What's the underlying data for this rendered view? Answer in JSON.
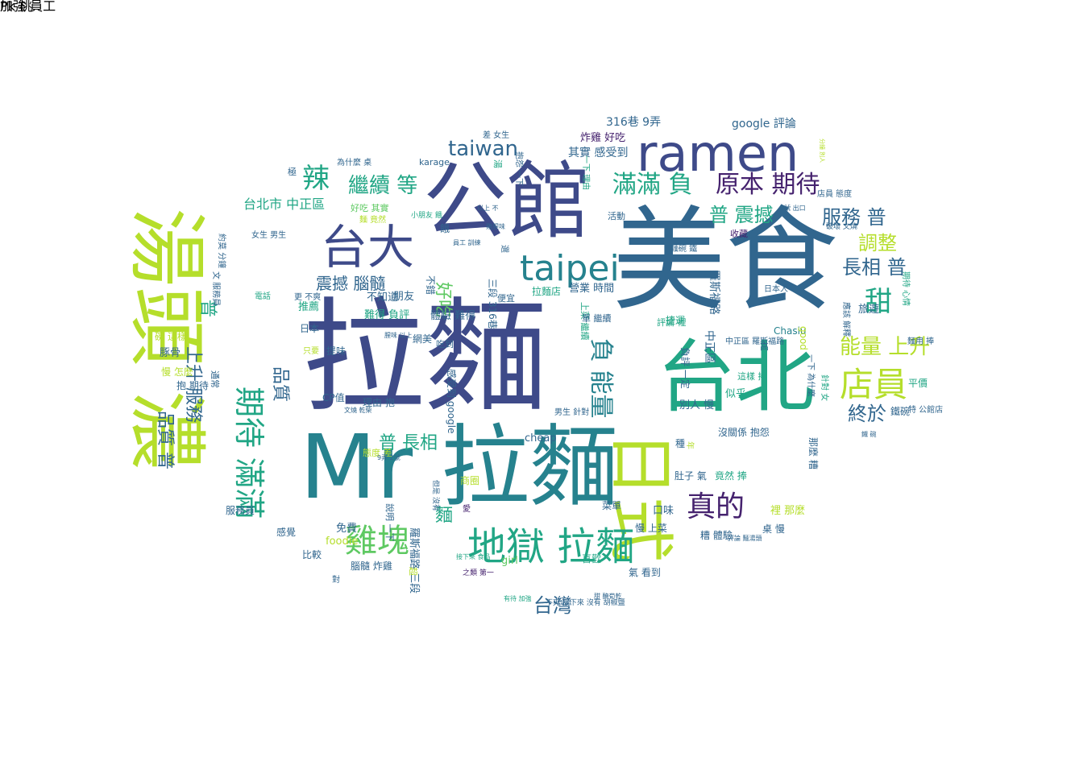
{
  "palette": {
    "dark_purple": "#45226e",
    "indigo": "#3e4a89",
    "slate_blue": "#31668e",
    "teal": "#26828e",
    "green_teal": "#21a685",
    "green": "#5ec962",
    "lime": "#b5de2b"
  },
  "words": [
    {
      "text": "拉麵",
      "color": "#3e4a89"
    },
    {
      "text": "美食",
      "color": "#31668e"
    },
    {
      "text": "公館",
      "color": "#3e4a89"
    },
    {
      "text": "Mr 拉麵",
      "color": "#26828e"
    },
    {
      "text": "湯頭 濃",
      "color": "#b5de2b"
    },
    {
      "text": "台北",
      "color": "#21a685"
    },
    {
      "text": "ramen",
      "color": "#3e4a89"
    },
    {
      "text": "日式",
      "color": "#b5de2b"
    },
    {
      "text": "台大",
      "color": "#3e4a89"
    },
    {
      "text": "地獄 拉麵",
      "color": "#21a685"
    },
    {
      "text": "雞塊",
      "color": "#5ec962"
    },
    {
      "text": "taipei",
      "color": "#26828e"
    },
    {
      "text": "店員",
      "color": "#b5de2b"
    },
    {
      "text": "期待 滿滿",
      "color": "#21a685"
    },
    {
      "text": "真的",
      "color": "#45226e"
    },
    {
      "text": "辣",
      "color": "#21a685"
    },
    {
      "text": "甜",
      "color": "#21a685"
    },
    {
      "text": "負 能量",
      "color": "#26828e"
    },
    {
      "text": "滿滿 負",
      "color": "#21a685"
    },
    {
      "text": "原本 期待",
      "color": "#45226e"
    },
    {
      "text": "繼續 等",
      "color": "#21a685"
    },
    {
      "text": "taiwan",
      "color": "#31668e"
    },
    {
      "text": "服務 普",
      "color": "#31668e"
    },
    {
      "text": "能量 上升",
      "color": "#b5de2b"
    },
    {
      "text": "普 震撼",
      "color": "#21a685"
    },
    {
      "text": "長相 普",
      "color": "#31668e"
    },
    {
      "text": "調整",
      "color": "#b5de2b"
    },
    {
      "text": "終於",
      "color": "#31668e"
    },
    {
      "text": "普 長相",
      "color": "#21a685"
    },
    {
      "text": "台灣",
      "color": "#31668e"
    },
    {
      "text": "品質 普",
      "color": "#31668e"
    },
    {
      "text": "品質",
      "color": "#31668e"
    },
    {
      "text": "普",
      "color": "#21a685"
    },
    {
      "text": "上升 服務",
      "color": "#31668e"
    },
    {
      "text": "震撼 腦髓",
      "color": "#31668e"
    },
    {
      "text": "好吃",
      "color": "#5ec962"
    },
    {
      "text": "麵",
      "color": "#21a685"
    },
    {
      "text": "台北市 中正區",
      "color": "#21a685"
    },
    {
      "text": "316巷 9弄",
      "color": "#31668e"
    },
    {
      "text": "google 評論",
      "color": "#31668e"
    },
    {
      "text": "炸雞 好吃",
      "color": "#45226e"
    },
    {
      "text": "其實 感受到",
      "color": "#31668e"
    },
    {
      "text": "營業 時間",
      "color": "#31668e"
    },
    {
      "text": "羅斯福路",
      "color": "#31668e"
    },
    {
      "text": "中正區",
      "color": "#31668e"
    },
    {
      "text": "網美",
      "color": "#31668e"
    },
    {
      "text": "豚骨",
      "color": "#31668e"
    },
    {
      "text": "推薦",
      "color": "#21a685"
    },
    {
      "text": "朋友",
      "color": "#31668e"
    },
    {
      "text": "不知道",
      "color": "#31668e"
    },
    {
      "text": "難得 負評",
      "color": "#21a685"
    },
    {
      "text": "體驗 難得",
      "color": "#31668e"
    },
    {
      "text": "拉麵店",
      "color": "#21a685"
    },
    {
      "text": "旅遊",
      "color": "#31668e"
    },
    {
      "text": "Chasiu",
      "color": "#26828e"
    },
    {
      "text": "good",
      "color": "#b5de2b"
    },
    {
      "text": "平價",
      "color": "#21a685"
    },
    {
      "text": "鐵碗",
      "color": "#31668e"
    },
    {
      "text": "似乎",
      "color": "#21a685"
    },
    {
      "text": "別人 慢",
      "color": "#31668e"
    },
    {
      "text": "cheap",
      "color": "#31668e"
    },
    {
      "text": "沒關係 抱怨",
      "color": "#31668e"
    },
    {
      "text": "那麼 糟",
      "color": "#31668e"
    },
    {
      "text": "種",
      "color": "#31668e"
    },
    {
      "text": "肚子 氣",
      "color": "#31668e"
    },
    {
      "text": "竟然 捧",
      "color": "#21a685"
    },
    {
      "text": "裡 那麼",
      "color": "#b5de2b"
    },
    {
      "text": "糟 體驗",
      "color": "#31668e"
    },
    {
      "text": "桌 慢",
      "color": "#31668e"
    },
    {
      "text": "慢 上菜",
      "color": "#31668e"
    },
    {
      "text": "口味",
      "color": "#31668e"
    },
    {
      "text": "菜單",
      "color": "#31668e"
    },
    {
      "text": "girl",
      "color": "#5ec962"
    },
    {
      "text": "喜歡",
      "color": "#21a685"
    },
    {
      "text": "氣 看到",
      "color": "#31668e"
    },
    {
      "text": "免費",
      "color": "#31668e"
    },
    {
      "text": "foodie",
      "color": "#b5de2b"
    },
    {
      "text": "比較",
      "color": "#31668e"
    },
    {
      "text": "腦髓 炸雞",
      "color": "#31668e"
    },
    {
      "text": "羅斯福路 三段",
      "color": "#31668e"
    },
    {
      "text": "商圈",
      "color": "#b5de2b"
    },
    {
      "text": "感覺",
      "color": "#31668e"
    },
    {
      "text": "服務員",
      "color": "#31668e"
    },
    {
      "text": "理由 抱",
      "color": "#31668e"
    },
    {
      "text": "CP值",
      "color": "#31668e"
    },
    {
      "text": "提味",
      "color": "#31668e"
    },
    {
      "text": "日本",
      "color": "#31668e"
    },
    {
      "text": "抱 期待",
      "color": "#31668e"
    },
    {
      "text": "慢 怎麼",
      "color": "#b5de2b"
    },
    {
      "text": "碗 這樣",
      "color": "#b5de2b"
    },
    {
      "text": "只要",
      "color": "#b5de2b"
    },
    {
      "text": "吃到",
      "color": "#31668e"
    },
    {
      "text": "便宜",
      "color": "#31668e"
    },
    {
      "text": "好吃 其實",
      "color": "#5ec962"
    },
    {
      "text": "湯",
      "color": "#21a685"
    },
    {
      "text": "karage",
      "color": "#31668e"
    },
    {
      "text": "為什麼 桌",
      "color": "#31668e"
    },
    {
      "text": "差 女生",
      "color": "#31668e"
    },
    {
      "text": "女生 男生",
      "color": "#31668e"
    },
    {
      "text": "收藏",
      "color": "#45226e"
    },
    {
      "text": "活動",
      "color": "#31668e"
    },
    {
      "text": "捷運",
      "color": "#21a685"
    },
    {
      "text": "評論 裡",
      "color": "#21a685"
    },
    {
      "text": "店員 態度",
      "color": "#31668e"
    },
    {
      "text": "破壞 文燒",
      "color": "#31668e"
    },
    {
      "text": "麵用 捧",
      "color": "#31668e"
    },
    {
      "text": "這樣 捧",
      "color": "#21a685"
    },
    {
      "text": "男生 針對",
      "color": "#31668e"
    },
    {
      "text": "態度 差",
      "color": "#b5de2b"
    },
    {
      "text": "麵 竟然",
      "color": "#b5de2b"
    },
    {
      "text": "餓",
      "color": "#31668e"
    },
    {
      "text": "極",
      "color": "#31668e"
    },
    {
      "text": "通常",
      "color": "#31668e"
    },
    {
      "text": "超",
      "color": "#b5de2b"
    },
    {
      "text": "對",
      "color": "#31668e"
    },
    {
      "text": "高",
      "color": "#31668e"
    },
    {
      "text": "年",
      "color": "#b5de2b"
    },
    {
      "text": "愛",
      "color": "#45226e"
    },
    {
      "text": "小朋友 餓",
      "color": "#21a685"
    },
    {
      "text": "不錯",
      "color": "#31668e"
    },
    {
      "text": "三段 316巷",
      "color": "#31668e"
    },
    {
      "text": "感受到 google",
      "color": "#31668e"
    },
    {
      "text": "說明 一下",
      "color": "#31668e"
    },
    {
      "text": "上菜 繼續",
      "color": "#21a685"
    },
    {
      "text": "單 繼續",
      "color": "#31668e"
    },
    {
      "text": "一下 理由",
      "color": "#21a685"
    },
    {
      "text": "抱怨 一下",
      "color": "#31668e"
    },
    {
      "text": "選",
      "color": "#31668e"
    },
    {
      "text": "更 不爽",
      "color": "#31668e"
    },
    {
      "text": "電話",
      "color": "#21a685"
    },
    {
      "text": "約莫 分鐘",
      "color": "#31668e"
    },
    {
      "text": "文 服務員",
      "color": "#31668e"
    },
    {
      "text": "期待 心情",
      "color": "#21a685"
    },
    {
      "text": "應該 解釋",
      "color": "#31668e"
    },
    {
      "text": "針對 女",
      "color": "#21a685"
    },
    {
      "text": "一下 為什麼",
      "color": "#31668e"
    },
    {
      "text": "麵碗 鐵",
      "color": "#31668e"
    },
    {
      "text": "中正區 羅斯福路",
      "color": "#31668e"
    },
    {
      "text": "負評 一定",
      "color": "#31668e"
    },
    {
      "text": "日本人",
      "color": "#31668e"
    },
    {
      "text": "特 公館店",
      "color": "#31668e"
    },
    {
      "text": "鐵 碗",
      "color": "#31668e"
    },
    {
      "text": "9弄 2號",
      "color": "#31668e"
    },
    {
      "text": "不爽 接下來 沒有 胡椒鹽",
      "color": "#31668e"
    },
    {
      "text": "甜 醃荀乾",
      "color": "#31668e"
    },
    {
      "text": "有待 加強",
      "color": "#21a685"
    },
    {
      "text": "之類 第一",
      "color": "#45226e"
    },
    {
      "text": "接下來 食品",
      "color": "#21a685"
    },
    {
      "text": "腥味 以上",
      "color": "#31668e"
    },
    {
      "text": "以上 不",
      "color": "#31668e"
    },
    {
      "text": "雞腥味",
      "color": "#31668e"
    },
    {
      "text": "員工 訓練",
      "color": "#31668e"
    },
    {
      "text": "文燒 乾柴",
      "color": "#31668e"
    },
    {
      "text": "但是 沒有",
      "color": "#31668e"
    },
    {
      "text": "4號 出口",
      "color": "#31668e"
    },
    {
      "text": "分鐘 別人",
      "color": "#b5de2b"
    },
    {
      "text": "評論 麵湯頭",
      "color": "#31668e"
    },
    {
      "text": "加強 員工",
      "color": "#31668e"
    },
    {
      "text": "Pk 桃",
      "color": "#31668e"
    }
  ]
}
